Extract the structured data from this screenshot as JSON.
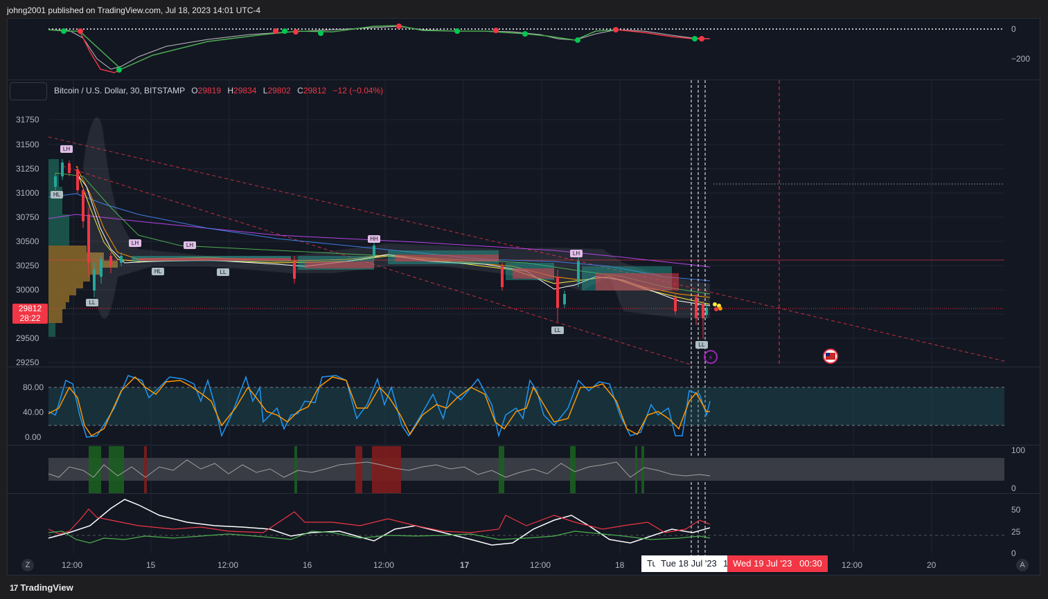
{
  "header": {
    "published": "johng2001 published on TradingView.com, Jul 18, 2023 14:01 UTC-4"
  },
  "legend": {
    "symbol": "Bitcoin / U.S. Dollar, 30, BITSTAMP",
    "o_label": "O",
    "o_value": "29819",
    "h_label": "H",
    "h_value": "29834",
    "l_label": "L",
    "l_value": "29802",
    "c_label": "C",
    "c_value": "29812",
    "change": "−12 (−0.04%)"
  },
  "top_pane": {
    "ticks": [
      "0",
      "−200"
    ]
  },
  "price_axis": {
    "ticks": [
      "31750",
      "31500",
      "31250",
      "31000",
      "30750",
      "30500",
      "30250",
      "30000",
      "29750",
      "29500",
      "29250"
    ]
  },
  "price_tag": {
    "price": "29812",
    "countdown": "28:22"
  },
  "stoch_axis": {
    "ticks": [
      "80.00",
      "40.00",
      "0.00"
    ]
  },
  "pane3_axis": {
    "ticks": [
      "100",
      "0"
    ]
  },
  "pane4_axis": {
    "ticks": [
      "50",
      "25",
      "0"
    ]
  },
  "time_axis": {
    "ticks": [
      "12:00",
      "15",
      "12:00",
      "16",
      "12:00",
      "17",
      "12:00",
      "18",
      "12:00",
      "20"
    ],
    "current_label": "Tue 18 Jul '23",
    "current_prefix": "Tu",
    "future_label": "Wed 19 Jul '23   00:30",
    "future_prefix": "1"
  },
  "patterns": [
    "LH",
    "HL",
    "LH",
    "LL",
    "LH",
    "HL",
    "LL",
    "HH",
    "LH",
    "LL",
    "LL"
  ],
  "footer": {
    "brand": "TradingView",
    "left_corner": "Z",
    "right_corner": "A"
  },
  "colors": {
    "up": "#26a69a",
    "down": "#f23645",
    "bg": "#131722",
    "grid": "#2a2e39"
  }
}
